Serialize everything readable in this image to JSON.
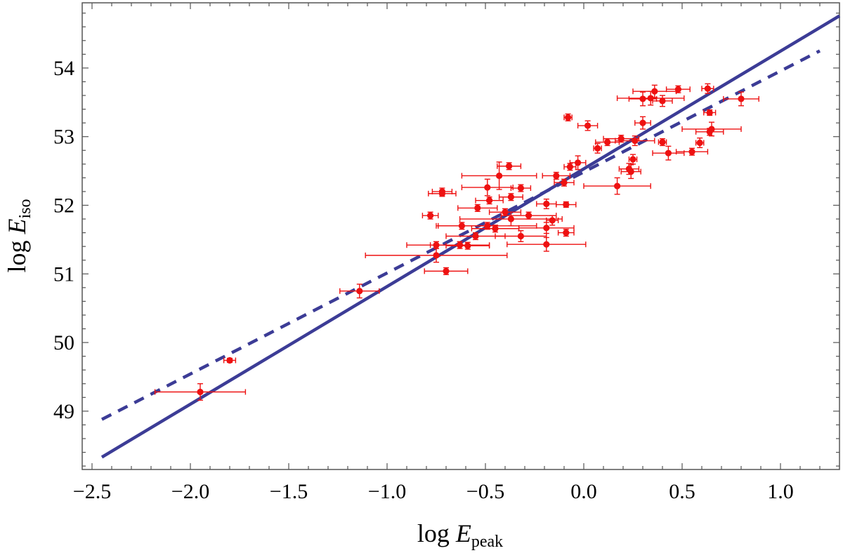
{
  "chart_data": {
    "type": "scatter",
    "title": "",
    "xlabel": {
      "main": "log ",
      "var": "E",
      "sub": "peak"
    },
    "ylabel": {
      "main": "log ",
      "var": "E",
      "sub": "iso"
    },
    "xlim": [
      -2.55,
      1.3
    ],
    "ylim": [
      48.15,
      54.95
    ],
    "xticks": [
      -2.5,
      -2.0,
      -1.5,
      -1.0,
      -0.5,
      0.0,
      0.5,
      1.0
    ],
    "xtick_labels": [
      "−2.5",
      "−2.0",
      "−1.5",
      "−1.0",
      "−0.5",
      "0.0",
      "0.5",
      "1.0"
    ],
    "yticks": [
      49,
      50,
      51,
      52,
      53,
      54
    ],
    "ytick_labels": [
      "49",
      "50",
      "51",
      "52",
      "53",
      "54"
    ],
    "grid": false,
    "colors": {
      "points": "#ee1111",
      "fit": "#3c3c96",
      "frame": "#555555"
    },
    "lines": [
      {
        "style": "solid",
        "x": [
          -2.45,
          1.3
        ],
        "y": [
          48.33,
          54.76
        ]
      },
      {
        "style": "dashed",
        "x": [
          -2.45,
          1.2
        ],
        "y": [
          48.88,
          54.25
        ]
      }
    ],
    "points": [
      {
        "x": -1.95,
        "y": 49.28,
        "xerr": 0.23,
        "yerr": 0.12
      },
      {
        "x": -1.8,
        "y": 49.74,
        "xerr": 0.03,
        "yerr": 0.03
      },
      {
        "x": -1.14,
        "y": 50.75,
        "xerr": 0.1,
        "yerr": 0.1
      },
      {
        "x": -0.7,
        "y": 51.04,
        "xerr": 0.11,
        "yerr": 0.05
      },
      {
        "x": -0.75,
        "y": 51.27,
        "xerr": 0.36,
        "yerr": 0.1
      },
      {
        "x": -0.75,
        "y": 51.42,
        "xerr": 0.15,
        "yerr": 0.05
      },
      {
        "x": -0.63,
        "y": 51.42,
        "xerr": 0.15,
        "yerr": 0.05
      },
      {
        "x": -0.59,
        "y": 51.41,
        "xerr": 0.11,
        "yerr": 0.05
      },
      {
        "x": -0.78,
        "y": 51.85,
        "xerr": 0.04,
        "yerr": 0.05
      },
      {
        "x": -0.72,
        "y": 52.2,
        "xerr": 0.05,
        "yerr": 0.05
      },
      {
        "x": -0.72,
        "y": 52.17,
        "xerr": 0.07,
        "yerr": 0.04
      },
      {
        "x": -0.62,
        "y": 51.7,
        "xerr": 0.13,
        "yerr": 0.05
      },
      {
        "x": -0.55,
        "y": 51.55,
        "xerr": 0.15,
        "yerr": 0.05
      },
      {
        "x": -0.54,
        "y": 51.96,
        "xerr": 0.1,
        "yerr": 0.05
      },
      {
        "x": -0.49,
        "y": 51.7,
        "xerr": 0.25,
        "yerr": 0.05
      },
      {
        "x": -0.49,
        "y": 52.26,
        "xerr": 0.13,
        "yerr": 0.12
      },
      {
        "x": -0.48,
        "y": 52.07,
        "xerr": 0.07,
        "yerr": 0.05
      },
      {
        "x": -0.45,
        "y": 51.66,
        "xerr": 0.12,
        "yerr": 0.05
      },
      {
        "x": -0.43,
        "y": 52.43,
        "xerr": 0.19,
        "yerr": 0.2
      },
      {
        "x": -0.4,
        "y": 51.9,
        "xerr": 0.08,
        "yerr": 0.05
      },
      {
        "x": -0.38,
        "y": 52.57,
        "xerr": 0.06,
        "yerr": 0.05
      },
      {
        "x": -0.37,
        "y": 52.12,
        "xerr": 0.06,
        "yerr": 0.05
      },
      {
        "x": -0.37,
        "y": 51.8,
        "xerr": 0.26,
        "yerr": 0.1
      },
      {
        "x": -0.32,
        "y": 52.25,
        "xerr": 0.05,
        "yerr": 0.05
      },
      {
        "x": -0.32,
        "y": 51.55,
        "xerr": 0.13,
        "yerr": 0.08
      },
      {
        "x": -0.28,
        "y": 51.85,
        "xerr": 0.14,
        "yerr": 0.05
      },
      {
        "x": -0.19,
        "y": 52.02,
        "xerr": 0.05,
        "yerr": 0.07
      },
      {
        "x": -0.19,
        "y": 51.67,
        "xerr": 0.14,
        "yerr": 0.08
      },
      {
        "x": -0.19,
        "y": 51.43,
        "xerr": 0.2,
        "yerr": 0.1
      },
      {
        "x": -0.16,
        "y": 51.78,
        "xerr": 0.03,
        "yerr": 0.07
      },
      {
        "x": -0.14,
        "y": 52.43,
        "xerr": 0.07,
        "yerr": 0.05
      },
      {
        "x": -0.1,
        "y": 52.33,
        "xerr": 0.05,
        "yerr": 0.05
      },
      {
        "x": -0.09,
        "y": 52.01,
        "xerr": 0.05,
        "yerr": 0.04
      },
      {
        "x": -0.09,
        "y": 51.6,
        "xerr": 0.04,
        "yerr": 0.05
      },
      {
        "x": -0.08,
        "y": 53.28,
        "xerr": 0.02,
        "yerr": 0.05
      },
      {
        "x": -0.07,
        "y": 52.56,
        "xerr": 0.03,
        "yerr": 0.05
      },
      {
        "x": -0.03,
        "y": 52.62,
        "xerr": 0.04,
        "yerr": 0.1
      },
      {
        "x": 0.02,
        "y": 53.16,
        "xerr": 0.05,
        "yerr": 0.07
      },
      {
        "x": 0.07,
        "y": 52.83,
        "xerr": 0.02,
        "yerr": 0.07
      },
      {
        "x": 0.12,
        "y": 52.92,
        "xerr": 0.06,
        "yerr": 0.05
      },
      {
        "x": 0.17,
        "y": 52.28,
        "xerr": 0.17,
        "yerr": 0.12
      },
      {
        "x": 0.19,
        "y": 52.97,
        "xerr": 0.09,
        "yerr": 0.05
      },
      {
        "x": 0.23,
        "y": 52.53,
        "xerr": 0.05,
        "yerr": 0.08
      },
      {
        "x": 0.24,
        "y": 52.49,
        "xerr": 0.05,
        "yerr": 0.1
      },
      {
        "x": 0.25,
        "y": 52.67,
        "xerr": 0.02,
        "yerr": 0.07
      },
      {
        "x": 0.26,
        "y": 52.94,
        "xerr": 0.1,
        "yerr": 0.07
      },
      {
        "x": 0.3,
        "y": 53.2,
        "xerr": 0.04,
        "yerr": 0.09
      },
      {
        "x": 0.3,
        "y": 53.55,
        "xerr": 0.07,
        "yerr": 0.1
      },
      {
        "x": 0.34,
        "y": 53.56,
        "xerr": 0.17,
        "yerr": 0.1
      },
      {
        "x": 0.36,
        "y": 53.66,
        "xerr": 0.11,
        "yerr": 0.09
      },
      {
        "x": 0.4,
        "y": 53.52,
        "xerr": 0.05,
        "yerr": 0.08
      },
      {
        "x": 0.4,
        "y": 52.92,
        "xerr": 0.02,
        "yerr": 0.05
      },
      {
        "x": 0.43,
        "y": 52.76,
        "xerr": 0.08,
        "yerr": 0.1
      },
      {
        "x": 0.48,
        "y": 53.69,
        "xerr": 0.06,
        "yerr": 0.05
      },
      {
        "x": 0.55,
        "y": 52.78,
        "xerr": 0.08,
        "yerr": 0.05
      },
      {
        "x": 0.59,
        "y": 52.91,
        "xerr": 0.02,
        "yerr": 0.07
      },
      {
        "x": 0.63,
        "y": 53.7,
        "xerr": 0.03,
        "yerr": 0.07
      },
      {
        "x": 0.64,
        "y": 53.35,
        "xerr": 0.03,
        "yerr": 0.04
      },
      {
        "x": 0.64,
        "y": 53.07,
        "xerr": 0.07,
        "yerr": 0.05
      },
      {
        "x": 0.65,
        "y": 53.11,
        "xerr": 0.15,
        "yerr": 0.1
      },
      {
        "x": 0.8,
        "y": 53.55,
        "xerr": 0.09,
        "yerr": 0.1
      }
    ]
  }
}
